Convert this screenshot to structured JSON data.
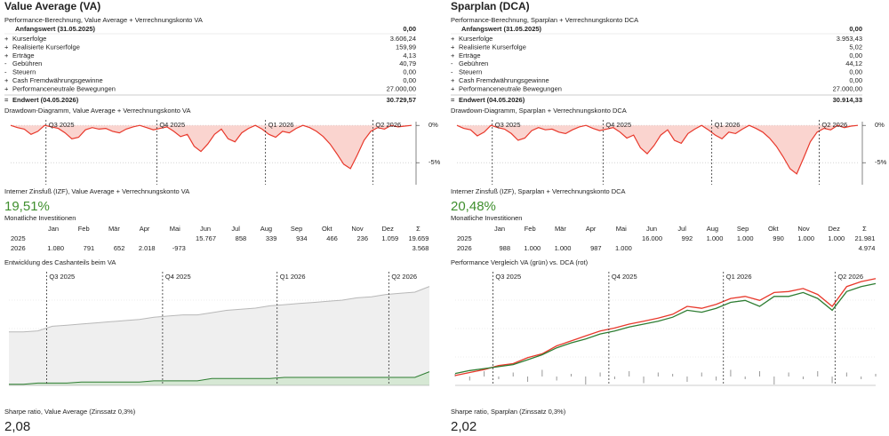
{
  "columns": [
    {
      "title": "Value Average (VA)",
      "performance": {
        "heading": "Performance-Berechnung, Value Average + Verrechnungskonto VA",
        "start": {
          "label": "Anfangswert (31.05.2025)",
          "value": "0,00"
        },
        "rows": [
          {
            "sign": "+",
            "label": "Kurserfolge",
            "value": "3.606,24"
          },
          {
            "sign": "+",
            "label": "Realisierte Kurserfolge",
            "value": "159,99"
          },
          {
            "sign": "+",
            "label": "Erträge",
            "value": "4,13"
          },
          {
            "sign": "-",
            "label": "Gebühren",
            "value": "40,79"
          },
          {
            "sign": "-",
            "label": "Steuern",
            "value": "0,00"
          },
          {
            "sign": "+",
            "label": "Cash Fremdwährungsgewinne",
            "value": "0,00"
          },
          {
            "sign": "+",
            "label": "Performanceneutrale Bewegungen",
            "value": "27.000,00"
          }
        ],
        "end": {
          "sign": "=",
          "label": "Endwert (04.05.2026)",
          "value": "30.729,57"
        }
      },
      "drawdown": {
        "type": "area",
        "heading": "Drawdown-Diagramm, Value Average + Verrechnungskonto VA",
        "ylim": [
          -7,
          0.5
        ],
        "xlim": [
          0,
          59
        ],
        "yticks": [
          {
            "value": 0,
            "label": "0%"
          },
          {
            "value": -5,
            "label": "-5%"
          }
        ],
        "quarters": [
          {
            "label": "Q3 2025",
            "x": 5.2
          },
          {
            "label": "Q4 2025",
            "x": 21.5
          },
          {
            "label": "Q1 2026",
            "x": 37.5
          },
          {
            "label": "Q2 2026",
            "x": 53.3
          }
        ],
        "color": "#e8382b",
        "fill": "#fad4cf",
        "values": [
          0,
          -0.3,
          -0.5,
          -1.2,
          -0.8,
          0,
          -0.2,
          -0.4,
          -1.0,
          -1.8,
          -1.6,
          -0.6,
          -0.3,
          -0.5,
          -0.4,
          -0.8,
          -1.0,
          -0.5,
          -0.2,
          0,
          -0.3,
          -0.6,
          -0.4,
          -0.2,
          -0.8,
          -1.5,
          -1.2,
          -2.8,
          -3.5,
          -2.5,
          -1.2,
          -0.5,
          -1.8,
          -2.2,
          -1.0,
          -0.4,
          0,
          -0.5,
          -1.2,
          -1.6,
          -0.8,
          -1.0,
          -0.4,
          0,
          -0.3,
          -0.8,
          -1.5,
          -2.5,
          -3.8,
          -5.2,
          -5.8,
          -4.0,
          -2.0,
          -0.8,
          -0.3,
          -0.5,
          0,
          -0.2,
          -0.1,
          0
        ]
      },
      "irr": {
        "heading": "Interner Zinsfuß (IZF), Value Average + Verrechnungskonto VA",
        "value": "19,51%"
      },
      "monthly": {
        "heading": "Monatliche Investitionen",
        "columns": [
          "Jan",
          "Feb",
          "Mär",
          "Apr",
          "Mai",
          "Jun",
          "Jul",
          "Aug",
          "Sep",
          "Okt",
          "Nov",
          "Dez",
          "Σ"
        ],
        "rows": [
          {
            "year": "2025",
            "values": [
              null,
              null,
              null,
              null,
              null,
              "15.767",
              "858",
              "339",
              "934",
              "466",
              "236",
              "1.059",
              "19.659"
            ]
          },
          {
            "year": "2026",
            "values": [
              "1.080",
              "791",
              "652",
              "2.018",
              "-973",
              null,
              null,
              null,
              null,
              null,
              null,
              null,
              "3.568"
            ]
          }
        ]
      },
      "chart": {
        "type": "area",
        "heading": "Entwicklung des Cashanteils beim VA",
        "ylim": [
          0,
          100
        ],
        "xlim": [
          0,
          29
        ],
        "quarters": [
          {
            "label": "Q3 2025",
            "x": 2.6
          },
          {
            "label": "Q4 2025",
            "x": 10.6
          },
          {
            "label": "Q1 2026",
            "x": 18.5
          },
          {
            "label": "Q2 2026",
            "x": 26.2
          }
        ],
        "series": [
          {
            "color": "#b8b8b8",
            "fill": "#efefef",
            "values": [
              47,
              47,
              48,
              52,
              53,
              54,
              55,
              56,
              57,
              58,
              60,
              61,
              62,
              62,
              64,
              66,
              67,
              68,
              70,
              71,
              72,
              73,
              74,
              75,
              77,
              78,
              80,
              81,
              82,
              87
            ]
          },
          {
            "color": "#2e7d32",
            "fill": "#d6e8d4",
            "values": [
              1,
              1,
              2,
              2,
              2,
              3,
              3,
              3,
              3,
              3,
              4,
              4,
              4,
              4,
              6,
              6,
              6,
              6,
              6,
              7,
              7,
              7,
              7,
              7,
              7,
              7,
              7,
              7,
              7,
              12
            ]
          }
        ]
      },
      "sharpe": {
        "heading": "Sharpe ratio, Value Average (Zinssatz 0,3%)",
        "value": "2,08"
      }
    },
    {
      "title": "Sparplan (DCA)",
      "performance": {
        "heading": "Performance-Berechnung, Sparplan + Verrechnungskonto DCA",
        "start": {
          "label": "Anfangswert (31.05.2025)",
          "value": "0,00"
        },
        "rows": [
          {
            "sign": "+",
            "label": "Kurserfolge",
            "value": "3.953,43"
          },
          {
            "sign": "+",
            "label": "Realisierte Kurserfolge",
            "value": "5,02"
          },
          {
            "sign": "+",
            "label": "Erträge",
            "value": "0,00"
          },
          {
            "sign": "-",
            "label": "Gebühren",
            "value": "44,12"
          },
          {
            "sign": "-",
            "label": "Steuern",
            "value": "0,00"
          },
          {
            "sign": "+",
            "label": "Cash Fremdwährungsgewinne",
            "value": "0,00"
          },
          {
            "sign": "+",
            "label": "Performanceneutrale Bewegungen",
            "value": "27.000,00"
          }
        ],
        "end": {
          "sign": "=",
          "label": "Endwert (04.05.2026)",
          "value": "30.914,33"
        }
      },
      "drawdown": {
        "type": "area",
        "heading": "Drawdown-Diagramm, Sparplan + Verrechnungskonto DCA",
        "ylim": [
          -7,
          0.5
        ],
        "xlim": [
          0,
          59
        ],
        "yticks": [
          {
            "value": 0,
            "label": "0%"
          },
          {
            "value": -5,
            "label": "-5%"
          }
        ],
        "quarters": [
          {
            "label": "Q3 2025",
            "x": 5.2
          },
          {
            "label": "Q4 2025",
            "x": 21.5
          },
          {
            "label": "Q1 2026",
            "x": 37.5
          },
          {
            "label": "Q2 2026",
            "x": 53.3
          }
        ],
        "color": "#e8382b",
        "fill": "#fad4cf",
        "values": [
          0,
          -0.4,
          -0.6,
          -1.4,
          -0.9,
          0,
          -0.3,
          -0.5,
          -1.1,
          -2.0,
          -1.7,
          -0.7,
          -0.3,
          -0.6,
          -0.5,
          -0.9,
          -1.1,
          -0.6,
          -0.2,
          0,
          -0.4,
          -0.7,
          -0.5,
          -0.3,
          -0.9,
          -1.7,
          -1.3,
          -3.0,
          -3.8,
          -2.7,
          -1.3,
          -0.6,
          -2.0,
          -2.4,
          -1.1,
          -0.5,
          0,
          -0.6,
          -1.3,
          -1.8,
          -0.9,
          -1.1,
          -0.5,
          0,
          -0.4,
          -0.9,
          -1.7,
          -2.8,
          -4.2,
          -5.8,
          -6.5,
          -4.4,
          -2.2,
          -0.9,
          -0.4,
          -0.6,
          0,
          -0.3,
          -0.1,
          0
        ]
      },
      "irr": {
        "heading": "Interner Zinsfuß (IZF), Sparplan + Verrechnungskonto DCA",
        "value": "20,48%"
      },
      "monthly": {
        "heading": "Monatliche Investitionen",
        "columns": [
          "Jan",
          "Feb",
          "Mär",
          "Apr",
          "Mai",
          "Jun",
          "Jul",
          "Aug",
          "Sep",
          "Okt",
          "Nov",
          "Dez",
          "Σ"
        ],
        "rows": [
          {
            "year": "2025",
            "values": [
              null,
              null,
              null,
              null,
              null,
              "16.000",
              "992",
              "1.000",
              "1.000",
              "990",
              "1.000",
              "1.000",
              "21.981"
            ]
          },
          {
            "year": "2026",
            "values": [
              "988",
              "1.000",
              "1.000",
              "987",
              "1.000",
              null,
              null,
              null,
              null,
              null,
              null,
              null,
              "4.974"
            ]
          }
        ]
      },
      "chart": {
        "type": "line",
        "heading": "Performance Vergleich VA (grün) vs. DCA (rot)",
        "ylim": [
          -10,
          105
        ],
        "xlim": [
          0,
          29
        ],
        "quarters": [
          {
            "label": "Q3 2025",
            "x": 2.6
          },
          {
            "label": "Q4 2025",
            "x": 10.6
          },
          {
            "label": "Q1 2026",
            "x": 18.5
          },
          {
            "label": "Q2 2026",
            "x": 26.2
          }
        ],
        "series": [
          {
            "color": "#e8382b",
            "values": [
              0,
              3,
              6,
              10,
              12,
              18,
              22,
              30,
              35,
              40,
              45,
              48,
              52,
              55,
              58,
              62,
              70,
              68,
              72,
              78,
              80,
              76,
              84,
              85,
              88,
              82,
              70,
              90,
              95,
              98
            ]
          },
          {
            "color": "#2e7d32",
            "values": [
              2,
              5,
              7,
              9,
              11,
              16,
              21,
              28,
              33,
              37,
              42,
              45,
              49,
              52,
              55,
              59,
              66,
              64,
              68,
              74,
              76,
              70,
              80,
              80,
              84,
              78,
              66,
              85,
              90,
              93
            ]
          }
        ],
        "bars": {
          "color": "#999999",
          "values": [
            2,
            -3,
            4,
            -2,
            3,
            -4,
            5,
            -3,
            2,
            -6,
            3,
            -2,
            4,
            -5,
            3,
            2,
            -4,
            3,
            -3,
            5,
            -2,
            4,
            -6,
            3,
            -2,
            4,
            -5,
            3,
            -2,
            2
          ]
        }
      },
      "sharpe": {
        "heading": "Sharpe ratio, Sparplan (Zinssatz 0,3%)",
        "value": "2,02"
      }
    }
  ]
}
